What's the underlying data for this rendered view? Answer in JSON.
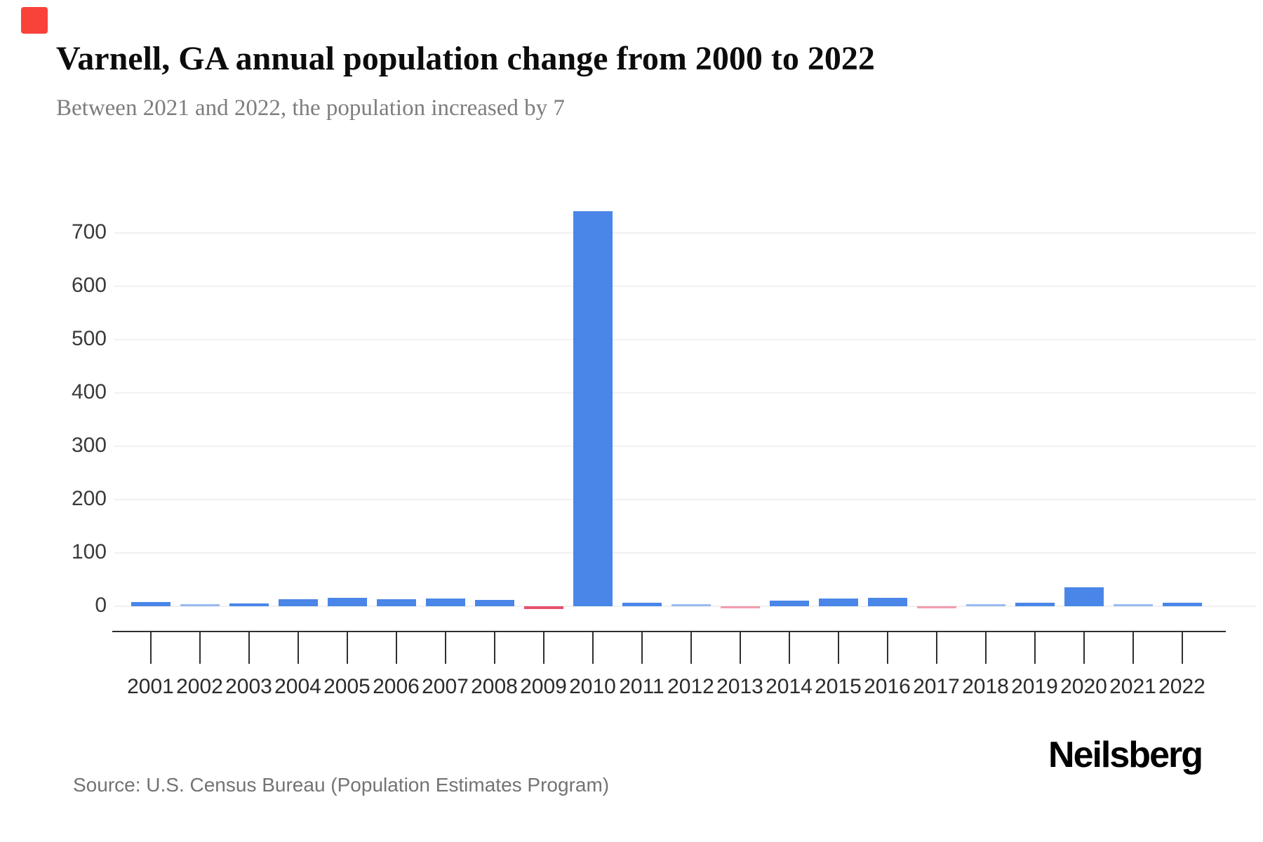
{
  "page": {
    "title": "Varnell, GA annual population change from 2000 to 2022",
    "subtitle": "Between 2021 and 2022, the population increased by 7"
  },
  "footer": {
    "source": "Source: U.S. Census Bureau (Population Estimates Program)",
    "brand": "Neilsberg"
  },
  "decorations": {
    "corner_accent_color": "#f9423a"
  },
  "chart_data": {
    "type": "bar",
    "title": "Varnell, GA annual population change from 2000 to 2022",
    "subtitle": "Between 2021 and 2022, the population increased by 7",
    "categories": [
      "2001",
      "2002",
      "2003",
      "2004",
      "2005",
      "2006",
      "2007",
      "2008",
      "2009",
      "2010",
      "2011",
      "2012",
      "2013",
      "2014",
      "2015",
      "2016",
      "2017",
      "2018",
      "2019",
      "2020",
      "2021",
      "2022"
    ],
    "values": [
      8,
      3,
      5,
      13,
      16,
      13,
      15,
      12,
      -5,
      741,
      6,
      4,
      -3,
      10,
      14,
      16,
      -4,
      2,
      6,
      35,
      2,
      7
    ],
    "xlabel": "",
    "ylabel": "",
    "yticks": [
      0,
      100,
      200,
      300,
      400,
      500,
      600,
      700
    ],
    "ylim": [
      -20,
      760
    ],
    "grid": true,
    "legend": false,
    "positive_color": "#4a86e8",
    "negative_color": "#e8506e",
    "grid_color": "#f1f1f1",
    "axis_color": "#2f2f2f",
    "tick_label_color": "#2b2b2b"
  }
}
